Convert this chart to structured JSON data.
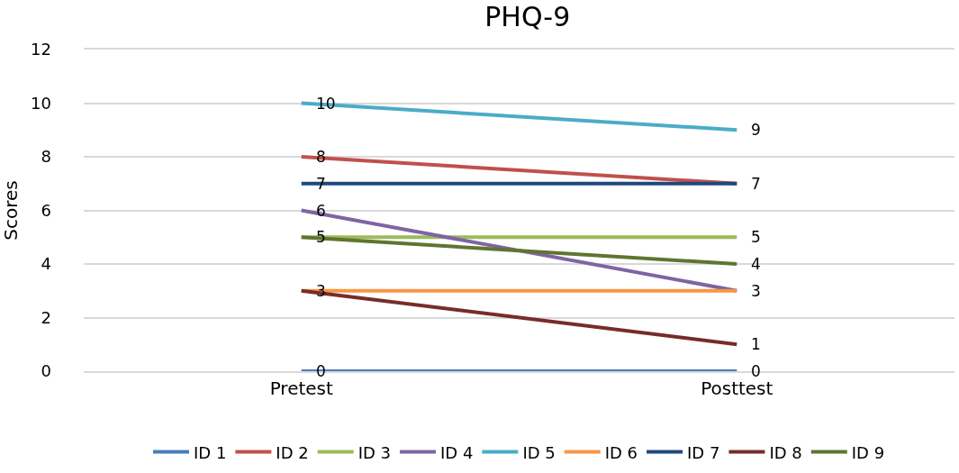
{
  "chart_data": {
    "type": "line",
    "title": "PHQ-9",
    "ylabel": "Scores",
    "categories": [
      "Pretest",
      "Posttest"
    ],
    "ylim": [
      0,
      12
    ],
    "yticks": [
      0,
      2,
      4,
      6,
      8,
      10,
      12
    ],
    "grid": "y",
    "legend": "bottom",
    "marker": "none",
    "line_style": "solid",
    "series": [
      {
        "name": "ID 1",
        "color": "#4a7ebb",
        "values": [
          0,
          0
        ],
        "value_labels": [
          "0",
          "0"
        ]
      },
      {
        "name": "ID 2",
        "color": "#c0504d",
        "values": [
          8,
          7
        ],
        "value_labels": [
          "8",
          "7"
        ]
      },
      {
        "name": "ID 3",
        "color": "#9bbb59",
        "values": [
          5,
          5
        ],
        "value_labels": [
          "5",
          "5"
        ]
      },
      {
        "name": "ID 4",
        "color": "#8064a2",
        "values": [
          6,
          3
        ],
        "value_labels": [
          "6",
          "3"
        ]
      },
      {
        "name": "ID 5",
        "color": "#4bacc6",
        "values": [
          10,
          9
        ],
        "value_labels": [
          "10",
          "9"
        ]
      },
      {
        "name": "ID 6",
        "color": "#f79646",
        "values": [
          3,
          3
        ],
        "value_labels": [
          "3",
          null
        ]
      },
      {
        "name": "ID 7",
        "color": "#1f497d",
        "values": [
          7,
          7
        ],
        "value_labels": [
          "7",
          null
        ]
      },
      {
        "name": "ID 8",
        "color": "#772c2a",
        "values": [
          3,
          1
        ],
        "value_labels": [
          null,
          "1"
        ]
      },
      {
        "name": "ID 9",
        "color": "#5f7530",
        "values": [
          5,
          4
        ],
        "value_labels": [
          null,
          "4"
        ]
      }
    ]
  }
}
